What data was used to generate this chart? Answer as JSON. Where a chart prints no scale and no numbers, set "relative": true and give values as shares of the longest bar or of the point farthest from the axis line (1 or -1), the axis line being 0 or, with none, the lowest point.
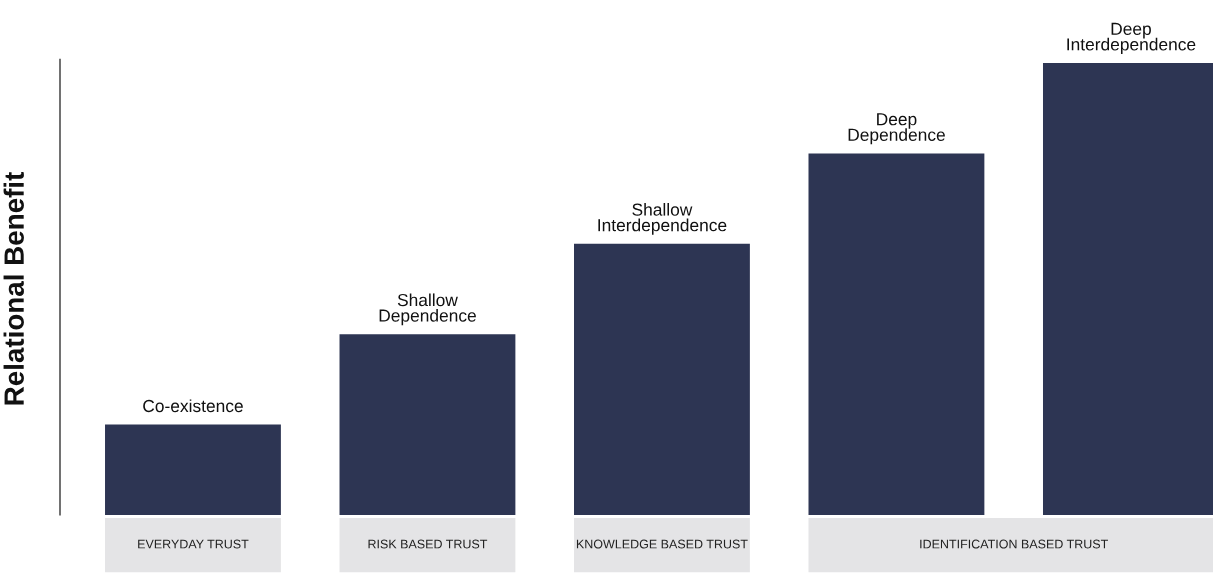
{
  "chart_data": {
    "type": "bar",
    "relative": true,
    "ylabel": "Relational Benefit",
    "categories": [
      "Co-existence",
      "Shallow\nDependence",
      "Shallow\nInterdependence",
      "Deep\nDependence",
      "Deep\nInterdependence"
    ],
    "values": [
      0.2,
      0.4,
      0.6,
      0.8,
      1.0
    ],
    "color": "#2d3553",
    "annotations": [
      "EVERYDAY TRUST",
      "RISK BASED TRUST",
      "KNOWLEDGE BASED TRUST",
      "IDENTIFICATION BASED TRUST"
    ]
  }
}
